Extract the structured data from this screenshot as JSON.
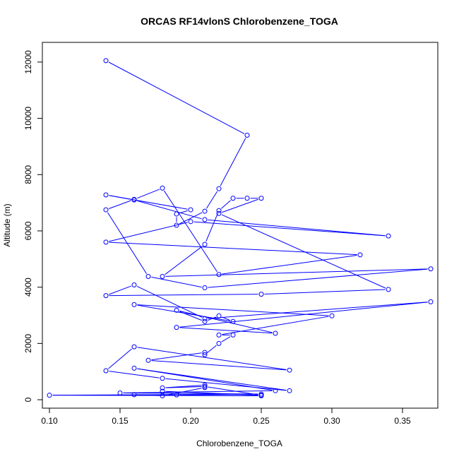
{
  "chart_data": {
    "type": "line",
    "title": "ORCAS RF14vlonS Chlorobenzene_TOGA",
    "xlabel": "Chlorobenzene_TOGA",
    "ylabel": "Altitude (m)",
    "xlim": [
      0.095,
      0.375
    ],
    "ylim": [
      -300,
      12700
    ],
    "xticks": [
      0.1,
      0.15,
      0.2,
      0.25,
      0.3,
      0.35
    ],
    "xtick_labels": [
      "0.10",
      "0.15",
      "0.20",
      "0.25",
      "0.30",
      "0.35"
    ],
    "yticks": [
      0,
      2000,
      4000,
      6000,
      8000,
      10000,
      12000
    ],
    "ytick_labels": [
      "0",
      "2000",
      "4000",
      "6000",
      "8000",
      "10000",
      "12000"
    ],
    "grid": false,
    "series_color": "#0000ff",
    "markers": "open-circle",
    "series": [
      {
        "x": [
          0.14,
          0.24,
          0.22,
          0.21,
          0.19,
          0.19,
          0.2,
          0.14,
          0.16,
          0.21,
          0.34,
          0.2,
          0.14,
          0.32,
          0.22,
          0.18,
          0.16,
          0.14,
          0.17,
          0.21,
          0.37,
          0.18,
          0.21,
          0.22,
          0.23,
          0.24,
          0.25,
          0.22,
          0.34,
          0.25,
          0.14,
          0.16,
          0.21,
          0.37,
          0.19,
          0.26,
          0.19,
          0.21,
          0.22,
          0.23,
          0.16,
          0.3,
          0.22,
          0.23,
          0.22,
          0.21,
          0.21,
          0.17,
          0.27,
          0.16,
          0.14,
          0.18,
          0.27,
          0.16,
          0.26,
          0.15,
          0.25,
          0.1,
          0.25,
          0.19,
          0.16,
          0.18,
          0.21,
          0.21,
          0.18,
          0.21,
          0.25,
          0.18
        ],
        "y": [
          12050,
          9400,
          7500,
          6700,
          6200,
          6600,
          6750,
          7280,
          7100,
          6400,
          5820,
          6330,
          5600,
          5150,
          4450,
          7520,
          7120,
          6750,
          4380,
          3980,
          4650,
          4380,
          5520,
          6720,
          7160,
          7160,
          7160,
          6620,
          3920,
          3750,
          3700,
          4080,
          2880,
          3480,
          2570,
          2360,
          3180,
          2780,
          2980,
          2780,
          3380,
          2980,
          2300,
          2300,
          2000,
          1600,
          1680,
          1400,
          1050,
          1880,
          1030,
          760,
          320,
          1120,
          320,
          240,
          200,
          160,
          140,
          170,
          180,
          140,
          430,
          520,
          420,
          470,
          160,
          300
        ]
      }
    ]
  }
}
